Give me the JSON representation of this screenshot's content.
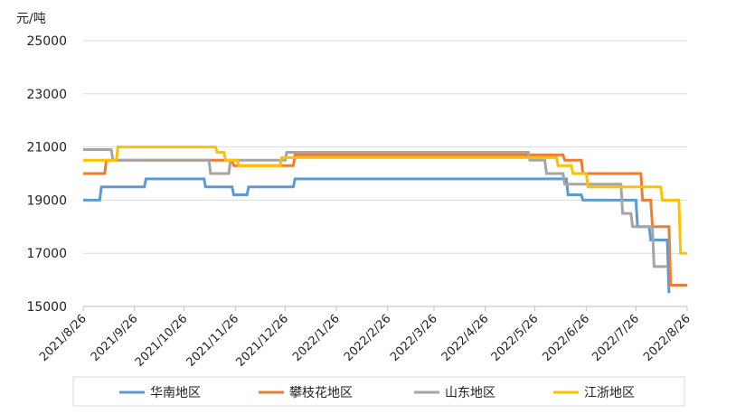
{
  "chart_data": {
    "type": "line",
    "ylabel": "元/吨",
    "ylim": [
      15000,
      25000
    ],
    "yticks": [
      15000,
      17000,
      19000,
      21000,
      23000,
      25000
    ],
    "ytick_labels": [
      "15000",
      "17000",
      "19000",
      "21000",
      "23000",
      "25000"
    ],
    "xlim": [
      "2021-08-26",
      "2022-08-26"
    ],
    "xticks": [
      "2021-08-26",
      "2021-09-26",
      "2021-10-26",
      "2021-11-26",
      "2021-12-26",
      "2022-01-26",
      "2022-02-26",
      "2022-03-26",
      "2022-04-26",
      "2022-05-26",
      "2022-06-26",
      "2022-07-26",
      "2022-08-26"
    ],
    "xtick_labels": [
      "2021/8/26",
      "2021/9/26",
      "2021/10/26",
      "2021/11/26",
      "2021/12/26",
      "2022/1/26",
      "2022/2/26",
      "2022/3/26",
      "2022/4/26",
      "2022/5/26",
      "2022/6/26",
      "2022/7/26",
      "2022/8/26"
    ],
    "grid": "horizontal",
    "legend_position": "bottom",
    "series": [
      {
        "name": "华南地区",
        "color": "#5b9bd5",
        "points": [
          [
            "2021-08-26",
            19000
          ],
          [
            "2021-09-05",
            19000
          ],
          [
            "2021-09-06",
            19500
          ],
          [
            "2021-10-02",
            19500
          ],
          [
            "2021-10-03",
            19800
          ],
          [
            "2021-11-07",
            19800
          ],
          [
            "2021-11-08",
            19500
          ],
          [
            "2021-11-24",
            19500
          ],
          [
            "2021-11-25",
            19200
          ],
          [
            "2021-12-03",
            19200
          ],
          [
            "2021-12-04",
            19500
          ],
          [
            "2021-12-31",
            19500
          ],
          [
            "2022-01-01",
            19800
          ],
          [
            "2022-06-14",
            19800
          ],
          [
            "2022-06-15",
            19200
          ],
          [
            "2022-06-23",
            19200
          ],
          [
            "2022-06-24",
            19000
          ],
          [
            "2022-07-26",
            19000
          ],
          [
            "2022-07-27",
            18000
          ],
          [
            "2022-08-03",
            18000
          ],
          [
            "2022-08-04",
            17500
          ],
          [
            "2022-08-14",
            17500
          ],
          [
            "2022-08-15",
            15500
          ]
        ]
      },
      {
        "name": "攀枝花地区",
        "color": "#ed7d31",
        "points": [
          [
            "2021-08-26",
            20000
          ],
          [
            "2021-09-08",
            20000
          ],
          [
            "2021-09-09",
            20500
          ],
          [
            "2021-11-24",
            20500
          ],
          [
            "2021-11-25",
            20300
          ],
          [
            "2021-12-31",
            20300
          ],
          [
            "2022-01-01",
            20700
          ],
          [
            "2022-06-12",
            20700
          ],
          [
            "2022-06-13",
            20500
          ],
          [
            "2022-06-23",
            20500
          ],
          [
            "2022-06-24",
            20000
          ],
          [
            "2022-07-29",
            20000
          ],
          [
            "2022-07-30",
            19000
          ],
          [
            "2022-08-04",
            19000
          ],
          [
            "2022-08-05",
            18000
          ],
          [
            "2022-08-15",
            18000
          ],
          [
            "2022-08-16",
            15800
          ],
          [
            "2022-08-26",
            15800
          ]
        ]
      },
      {
        "name": "山东地区",
        "color": "#a5a5a5",
        "points": [
          [
            "2021-08-26",
            20900
          ],
          [
            "2021-09-12",
            20900
          ],
          [
            "2021-09-13",
            20500
          ],
          [
            "2021-11-10",
            20500
          ],
          [
            "2021-11-11",
            20000
          ],
          [
            "2021-11-22",
            20000
          ],
          [
            "2021-11-23",
            20500
          ],
          [
            "2021-12-26",
            20500
          ],
          [
            "2021-12-27",
            20800
          ],
          [
            "2022-05-22",
            20800
          ],
          [
            "2022-05-23",
            20500
          ],
          [
            "2022-06-01",
            20500
          ],
          [
            "2022-06-02",
            20000
          ],
          [
            "2022-06-12",
            20000
          ],
          [
            "2022-06-13",
            19600
          ],
          [
            "2022-07-17",
            19600
          ],
          [
            "2022-07-18",
            18500
          ],
          [
            "2022-07-23",
            18500
          ],
          [
            "2022-07-24",
            18000
          ],
          [
            "2022-08-05",
            18000
          ],
          [
            "2022-08-06",
            16500
          ],
          [
            "2022-08-14",
            16500
          ]
        ]
      },
      {
        "name": "江浙地区",
        "color": "#ffc000",
        "points": [
          [
            "2021-08-26",
            20500
          ],
          [
            "2021-09-15",
            20500
          ],
          [
            "2021-09-16",
            21000
          ],
          [
            "2021-11-14",
            21000
          ],
          [
            "2021-11-15",
            20800
          ],
          [
            "2021-11-19",
            20800
          ],
          [
            "2021-11-20",
            20500
          ],
          [
            "2021-11-27",
            20500
          ],
          [
            "2021-11-28",
            20300
          ],
          [
            "2021-12-23",
            20300
          ],
          [
            "2021-12-24",
            20600
          ],
          [
            "2022-06-08",
            20600
          ],
          [
            "2022-06-09",
            20300
          ],
          [
            "2022-06-17",
            20300
          ],
          [
            "2022-06-18",
            20000
          ],
          [
            "2022-06-26",
            20000
          ],
          [
            "2022-06-27",
            19500
          ],
          [
            "2022-07-31",
            19500
          ],
          [
            "2022-08-01",
            19500
          ],
          [
            "2022-08-10",
            19500
          ],
          [
            "2022-08-11",
            19000
          ],
          [
            "2022-08-21",
            19000
          ],
          [
            "2022-08-22",
            17000
          ],
          [
            "2022-08-26",
            17000
          ]
        ]
      }
    ]
  }
}
